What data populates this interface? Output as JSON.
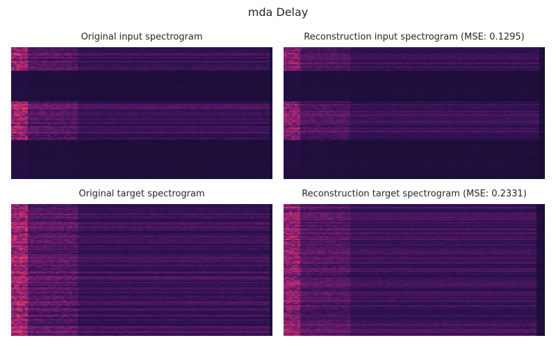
{
  "figure": {
    "title": "mda Delay"
  },
  "colors": {
    "background": "#ffffff",
    "colormap_low": "#160d2e",
    "colormap_mid": "#7a1f6e",
    "colormap_high": "#e2356b"
  },
  "chart_data": [
    {
      "type": "heatmap",
      "title": "Original input spectrogram",
      "colormap": "magma-like",
      "grid": false,
      "axes": "hidden"
    },
    {
      "type": "heatmap",
      "title": "Reconstruction input spectrogram (MSE: 0.1295)",
      "mse": 0.1295,
      "colormap": "magma-like",
      "grid": false,
      "axes": "hidden"
    },
    {
      "type": "heatmap",
      "title": "Original target spectrogram",
      "colormap": "magma-like",
      "grid": false,
      "axes": "hidden"
    },
    {
      "type": "heatmap",
      "title": "Reconstruction target spectrogram (MSE: 0.2331)",
      "mse": 0.2331,
      "colormap": "magma-like",
      "grid": false,
      "axes": "hidden"
    }
  ]
}
